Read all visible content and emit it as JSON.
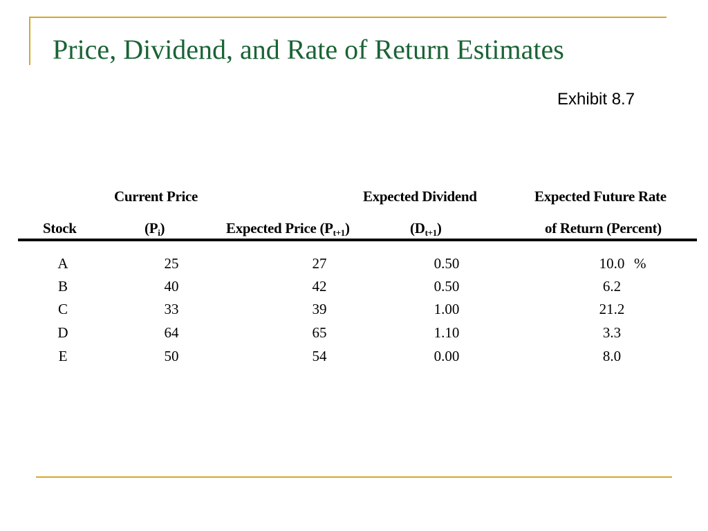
{
  "slide": {
    "title": "Price, Dividend, and Rate of Return Estimates",
    "exhibit": "Exhibit 8.7"
  },
  "table": {
    "headers": {
      "stock": "Stock",
      "current_price_line1": "Current Price",
      "current_price_open": "(P",
      "current_price_sub": "i",
      "current_price_close": ")",
      "expected_price_main": "Expected Price (P",
      "expected_price_sub": "t+1",
      "expected_price_close": ")",
      "expected_dividend_line1": "Expected Dividend",
      "expected_dividend_open": "(D",
      "expected_dividend_sub": "t+1",
      "expected_dividend_close": ")",
      "rate_line1": "Expected Future Rate",
      "rate_line2": "of Return (Percent)"
    },
    "rows": [
      {
        "stock": "A",
        "current_price": "25",
        "expected_price": "27",
        "expected_dividend": "0.50",
        "rate": "10.0"
      },
      {
        "stock": "B",
        "current_price": "40",
        "expected_price": "42",
        "expected_dividend": "0.50",
        "rate": "6.2"
      },
      {
        "stock": "C",
        "current_price": "33",
        "expected_price": "39",
        "expected_dividend": "1.00",
        "rate": "21.2"
      },
      {
        "stock": "D",
        "current_price": "64",
        "expected_price": "65",
        "expected_dividend": "1.10",
        "rate": "3.3"
      },
      {
        "stock": "E",
        "current_price": "50",
        "expected_price": "54",
        "expected_dividend": "0.00",
        "rate": "8.0"
      }
    ],
    "percent_sign": "%"
  }
}
